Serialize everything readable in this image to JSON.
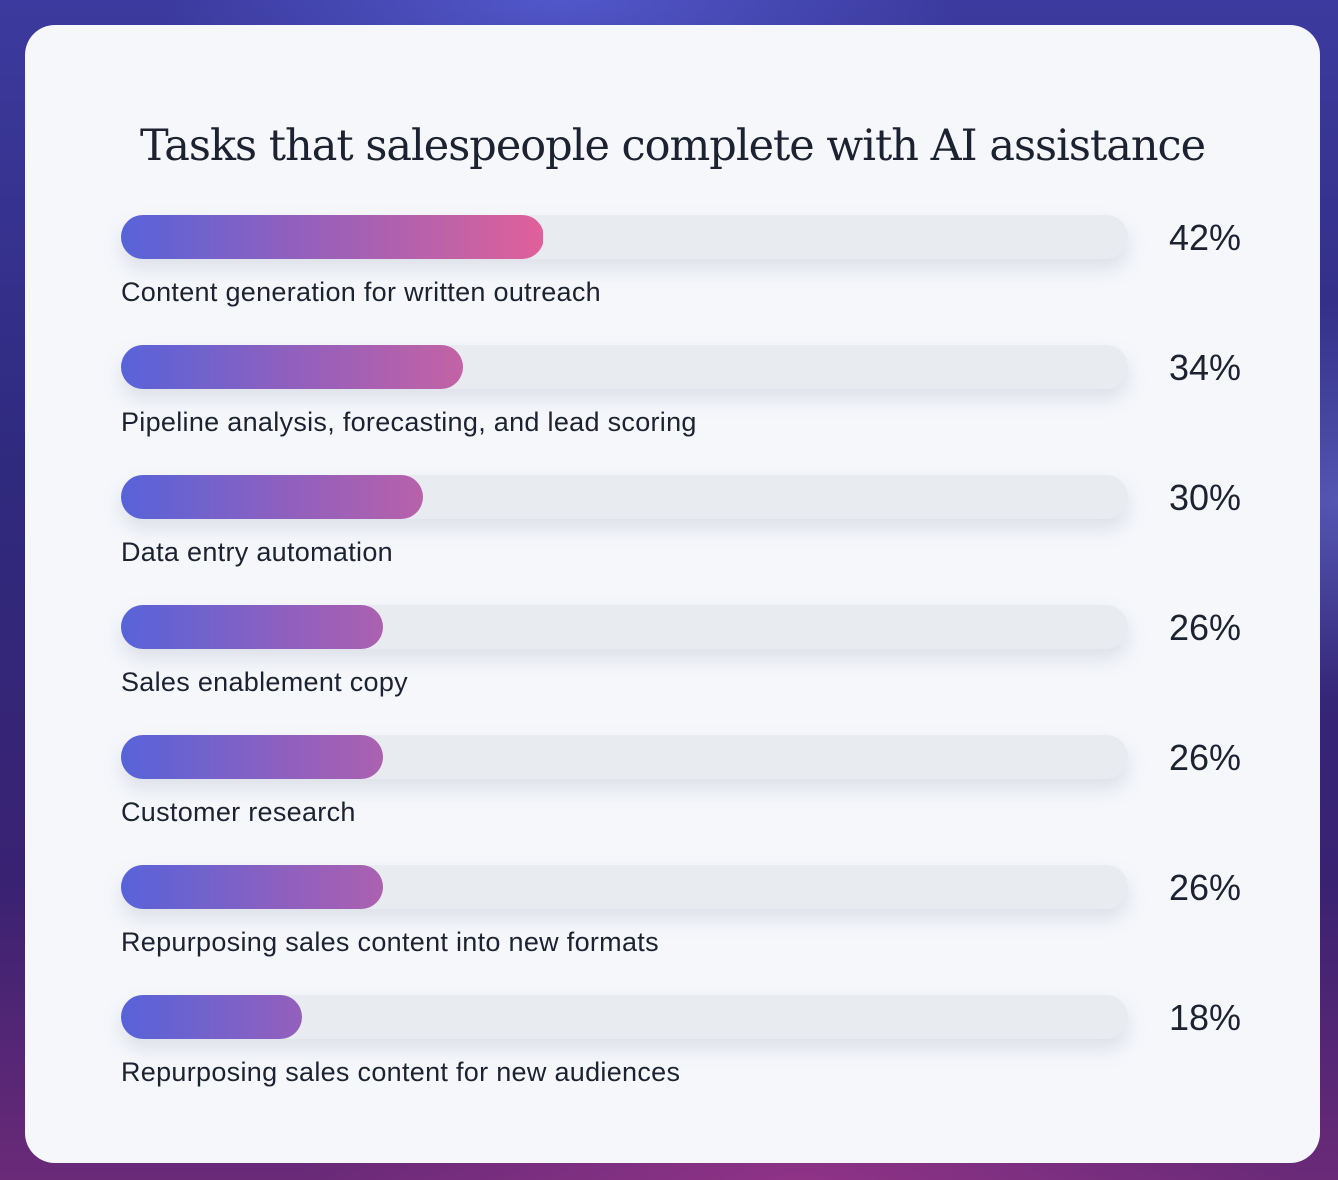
{
  "chart_data": {
    "type": "bar",
    "orientation": "horizontal",
    "title": "Tasks that salespeople complete with AI assistance",
    "categories": [
      "Content generation for written outreach",
      "Pipeline analysis, forecasting, and lead scoring",
      "Data entry automation",
      "Sales enablement copy",
      "Customer research",
      "Repurposing sales content into new formats",
      "Repurposing sales content for new audiences"
    ],
    "values": [
      42,
      34,
      30,
      26,
      26,
      26,
      18
    ],
    "labels": [
      "42%",
      "34%",
      "30%",
      "26%",
      "26%",
      "26%",
      "18%"
    ],
    "xlim": [
      0,
      100
    ],
    "unit": "%",
    "colors": {
      "gradient_start": "#5763d9",
      "gradient_end": "#e0609a",
      "track": "#e8ecf1"
    }
  }
}
